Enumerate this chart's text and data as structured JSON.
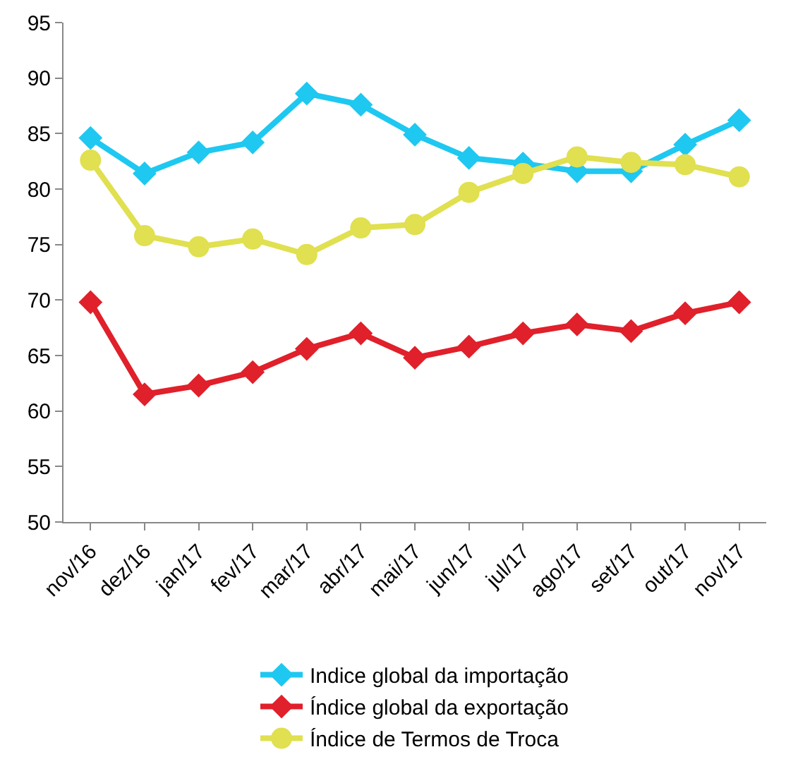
{
  "chart_data": {
    "type": "line",
    "categories": [
      "nov/16",
      "dez/16",
      "jan/17",
      "fev/17",
      "mar/17",
      "abr/17",
      "mai/17",
      "jun/17",
      "jul/17",
      "ago/17",
      "set/17",
      "out/17",
      "nov/17"
    ],
    "series": [
      {
        "name": "Indice global da importação",
        "color": "#1ec8f0",
        "marker": "diamond",
        "values": [
          84.6,
          81.4,
          83.3,
          84.2,
          88.6,
          87.6,
          84.9,
          82.8,
          82.3,
          81.6,
          81.6,
          84.0,
          86.2
        ]
      },
      {
        "name": "Índice global da exportação",
        "color": "#e0202a",
        "marker": "diamond",
        "values": [
          69.8,
          61.5,
          62.3,
          63.5,
          65.6,
          67.0,
          64.8,
          65.8,
          67.0,
          67.8,
          67.2,
          68.8,
          69.8
        ]
      },
      {
        "name": "Índice de Termos de Troca",
        "color": "#e0e050",
        "marker": "circle",
        "values": [
          82.6,
          75.8,
          74.8,
          75.5,
          74.1,
          76.5,
          76.8,
          79.7,
          81.4,
          82.9,
          82.4,
          82.2,
          81.1
        ]
      }
    ],
    "ylim": [
      50,
      95
    ],
    "yticks": [
      50,
      55,
      60,
      65,
      70,
      75,
      80,
      85,
      90,
      95
    ],
    "grid": false,
    "legend": "bottom",
    "line_style": "solid"
  }
}
